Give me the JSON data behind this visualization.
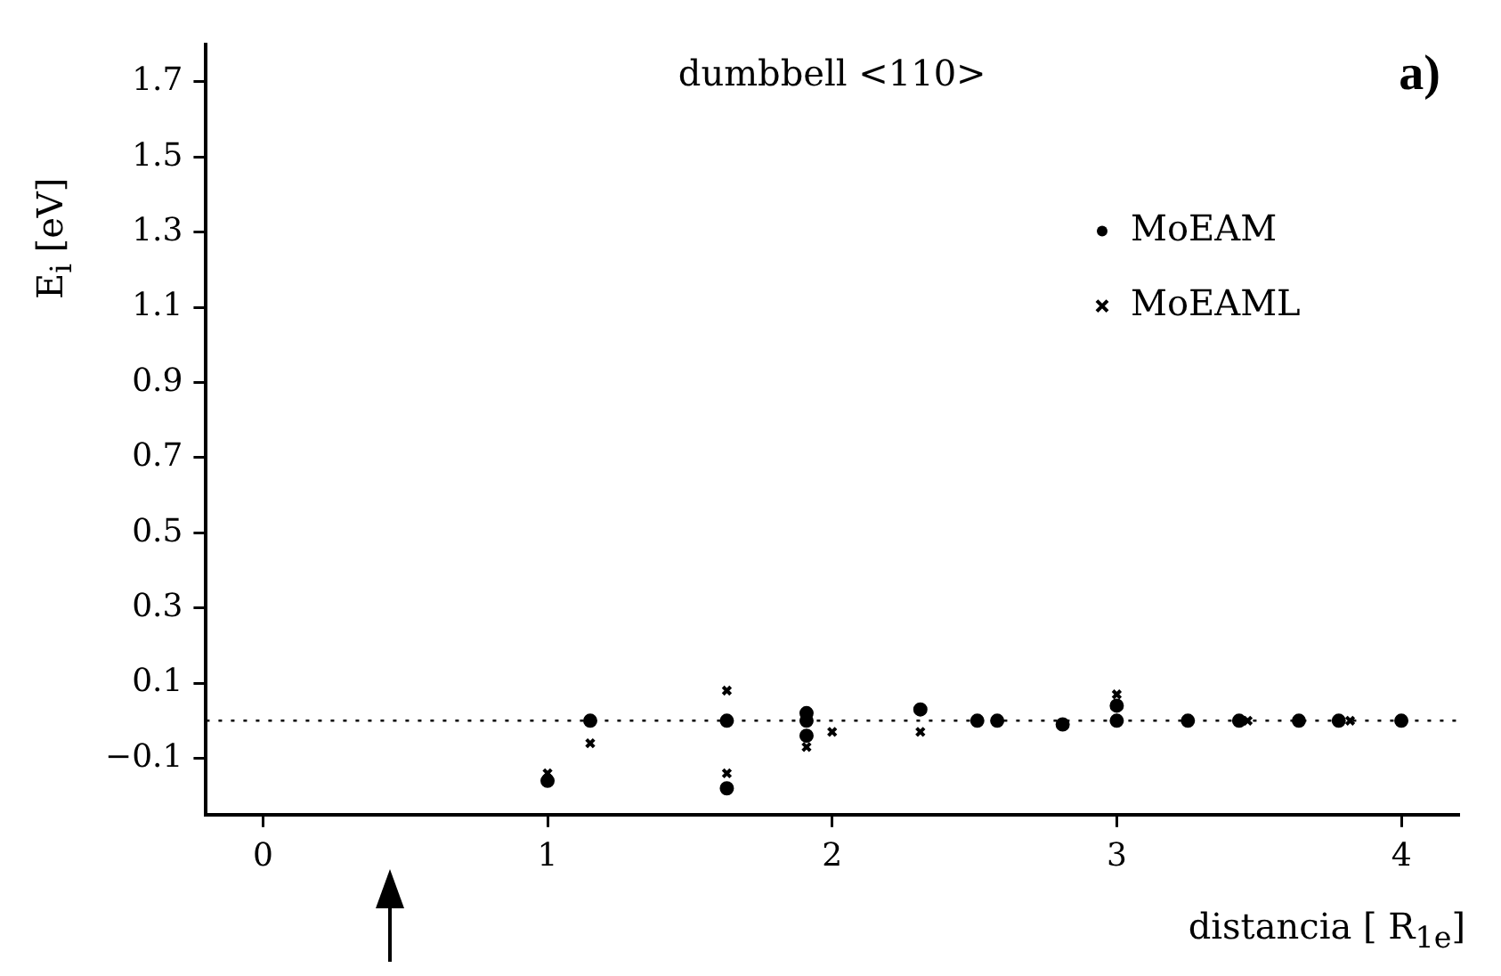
{
  "chart_data": {
    "type": "scatter",
    "title": "dumbbell <110>",
    "xlabel": "distancia [ R$_{1e}$]",
    "ylabel": "E$_{i}$ [eV]",
    "annotations": [
      "a)"
    ],
    "xlim": [
      -0.2,
      4.2
    ],
    "xticks": [
      0,
      1,
      2,
      3,
      4
    ],
    "ylim": [
      -0.25,
      1.8
    ],
    "yticks": [
      -0.1,
      0.1,
      0.3,
      0.5,
      0.7,
      0.9,
      1.1,
      1.3,
      1.5,
      1.7
    ],
    "grid": false,
    "legend": "top right",
    "ref_lines": [
      {
        "axis": "y",
        "value": 0,
        "color": "#000000",
        "line_style": "dotted"
      }
    ],
    "series": [
      {
        "name": "MoEAM",
        "color": "#000000",
        "marker": "circle",
        "x": [
          1,
          1.15,
          1.63,
          1.63,
          1.91,
          1.91,
          1.91,
          2.31,
          2.51,
          2.58,
          2.81,
          3,
          3,
          3.25,
          3.43,
          3.64,
          3.78,
          4
        ],
        "values": [
          -0.16,
          0,
          0,
          -0.18,
          0.02,
          0,
          -0.04,
          0.03,
          0,
          0,
          -0.01,
          0.04,
          0,
          0,
          0,
          0,
          0,
          0
        ]
      },
      {
        "name": "MoEAML",
        "color": "#000000",
        "marker": "cross",
        "x": [
          1,
          1.15,
          1.63,
          1.63,
          1.91,
          2,
          2.31,
          3,
          3.46,
          3.82
        ],
        "values": [
          -0.14,
          -0.06,
          0.08,
          -0.14,
          -0.07,
          -0.03,
          -0.03,
          0.07,
          0,
          0
        ]
      }
    ]
  }
}
